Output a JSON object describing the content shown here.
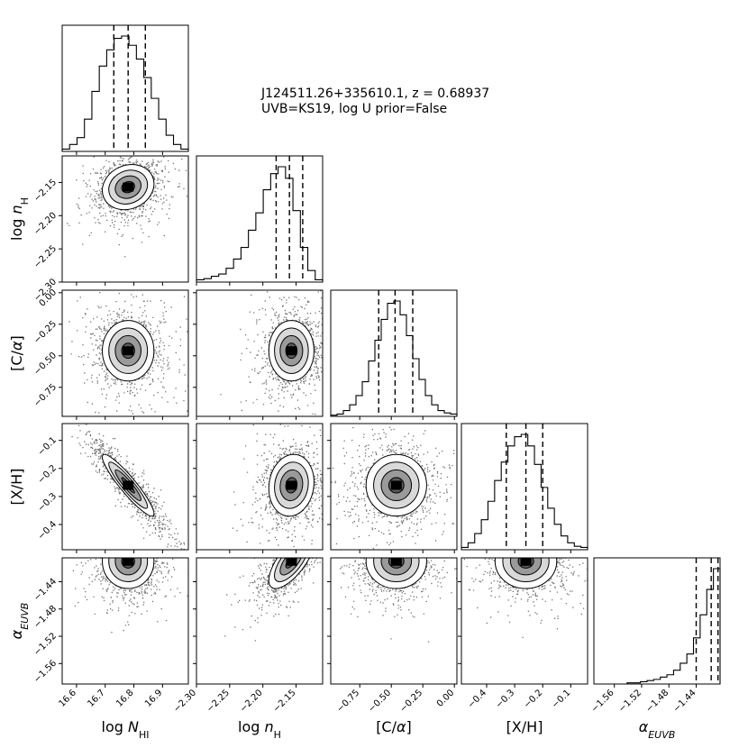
{
  "annotation": {
    "line1": "J124511.26+335610.1, z = 0.68937",
    "line2": "UVB=KS19, log U prior=False"
  },
  "chart_data": {
    "type": "corner",
    "parameters": [
      {
        "key": "logNHI",
        "label": "log N_HI",
        "range": [
          16.55,
          16.99
        ],
        "ticks": [
          16.6,
          16.7,
          16.8,
          16.9
        ],
        "tick_labels": [
          "16.6",
          "16.7",
          "16.8",
          "16.9"
        ],
        "center": 16.78,
        "sigma": 0.045,
        "quantiles": [
          16.73,
          16.78,
          16.84
        ]
      },
      {
        "key": "lognH",
        "label": "log n_H",
        "range": [
          -2.3,
          -2.11
        ],
        "ticks": [
          -2.3,
          -2.25,
          -2.2,
          -2.15
        ],
        "tick_labels": [
          "−2.30",
          "−2.25",
          "−2.20",
          "−2.15"
        ],
        "center": -2.157,
        "sigma": 0.017,
        "quantiles": [
          -2.18,
          -2.16,
          -2.14
        ]
      },
      {
        "key": "CA",
        "label": "[C/α]",
        "range": [
          -0.98,
          0.02
        ],
        "ticks": [
          -0.75,
          -0.5,
          -0.25,
          0.0
        ],
        "tick_labels": [
          "−0.75",
          "−0.50",
          "−0.25",
          "0.00"
        ],
        "center": -0.46,
        "sigma": 0.12,
        "quantiles": [
          -0.6,
          -0.47,
          -0.33
        ]
      },
      {
        "key": "XH",
        "label": "[X/H]",
        "range": [
          -0.49,
          -0.04
        ],
        "ticks": [
          -0.4,
          -0.3,
          -0.2,
          -0.1
        ],
        "tick_labels": [
          "−0.4",
          "−0.3",
          "−0.2",
          "−0.1"
        ],
        "center": -0.26,
        "sigma": 0.055,
        "quantiles": [
          -0.33,
          -0.26,
          -0.2
        ]
      },
      {
        "key": "aEUVB",
        "label": "α_EUVB",
        "range": [
          -1.59,
          -1.405
        ],
        "ticks": [
          -1.56,
          -1.52,
          -1.48,
          -1.44
        ],
        "tick_labels": [
          "−1.56",
          "−1.52",
          "−1.48",
          "−1.44"
        ],
        "center": -1.41,
        "sigma": 0.02,
        "quantiles": [
          -1.44,
          -1.418,
          -1.408
        ]
      }
    ],
    "histograms": {
      "logNHI": [
        0.02,
        0.06,
        0.12,
        0.28,
        0.52,
        0.74,
        0.88,
        0.98,
        1.0,
        0.92,
        0.8,
        0.64,
        0.46,
        0.28,
        0.14,
        0.06,
        0.02
      ],
      "lognH": [
        0.02,
        0.03,
        0.05,
        0.07,
        0.12,
        0.2,
        0.3,
        0.45,
        0.6,
        0.8,
        0.94,
        1.0,
        0.9,
        0.62,
        0.3,
        0.1,
        0.02
      ],
      "CA": [
        0.01,
        0.02,
        0.05,
        0.1,
        0.18,
        0.3,
        0.48,
        0.66,
        0.84,
        0.98,
        1.0,
        0.88,
        0.7,
        0.5,
        0.32,
        0.18,
        0.1,
        0.05,
        0.03,
        0.02
      ],
      "XH": [
        0.02,
        0.06,
        0.14,
        0.26,
        0.42,
        0.6,
        0.76,
        0.9,
        0.98,
        1.0,
        0.9,
        0.74,
        0.54,
        0.36,
        0.22,
        0.12,
        0.06,
        0.03,
        0.02
      ],
      "aEUVB": [
        0.0,
        0.0,
        0.0,
        0.0,
        0.0,
        0.01,
        0.01,
        0.02,
        0.03,
        0.04,
        0.06,
        0.08,
        0.12,
        0.18,
        0.26,
        0.4,
        0.6,
        0.82,
        1.0
      ]
    },
    "correlations": {
      "lognH|logNHI": 0.15,
      "CA|logNHI": 0.0,
      "CA|lognH": 0.0,
      "XH|logNHI": -0.92,
      "XH|lognH": 0.1,
      "XH|CA": 0.0,
      "aEUVB|logNHI": 0.0,
      "aEUVB|lognH": 0.7,
      "aEUVB|CA": 0.0,
      "aEUVB|XH": 0.0
    },
    "contour_levels": [
      0.5,
      1.0,
      1.5,
      2.0
    ],
    "grid": false,
    "colors": {
      "points": "#000000",
      "contour": "#000000",
      "fill": "#ffffff",
      "hist": "#000000"
    }
  }
}
